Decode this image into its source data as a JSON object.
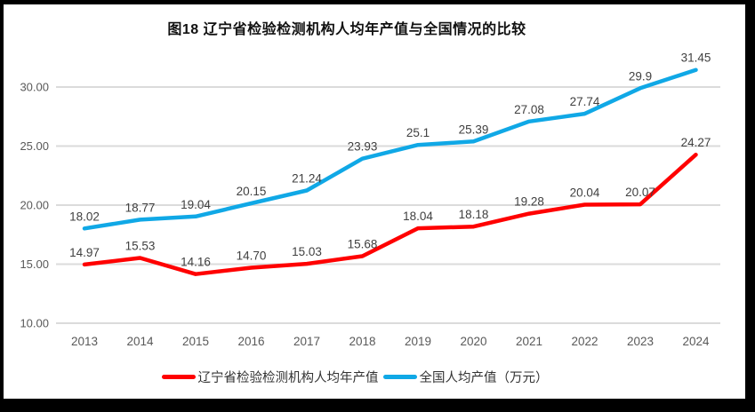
{
  "chart_data": {
    "type": "line",
    "title": "图18 辽宁省检验检测机构人均年产值与全国情况的比较",
    "categories": [
      "2013",
      "2014",
      "2015",
      "2016",
      "2017",
      "2018",
      "2019",
      "2020",
      "2021",
      "2022",
      "2023",
      "2024"
    ],
    "series": [
      {
        "name": "辽宁省检验检测机构人均年产值",
        "color": "#FF0000",
        "values": [
          14.97,
          15.53,
          14.16,
          14.7,
          15.03,
          15.68,
          18.04,
          18.18,
          19.28,
          20.04,
          20.07,
          24.27
        ],
        "labels": [
          "14.97",
          "15.53",
          "14.16",
          "14.70",
          "15.03",
          "15.68",
          "18.04",
          "18.18",
          "19.28",
          "20.04",
          "20.07",
          "24.27"
        ]
      },
      {
        "name": "全国人均产值（万元）",
        "color": "#10A8E6",
        "values": [
          18.02,
          18.77,
          19.04,
          20.15,
          21.24,
          23.93,
          25.1,
          25.39,
          27.08,
          27.74,
          29.9,
          31.45
        ],
        "labels": [
          "18.02",
          "18.77",
          "19.04",
          "20.15",
          "21.24",
          "23.93",
          "25.1",
          "25.39",
          "27.08",
          "27.74",
          "29.9",
          "31.45"
        ]
      }
    ],
    "y_axis": {
      "tick_values": [
        10,
        15,
        20,
        25,
        30
      ],
      "tick_labels": [
        "10.00",
        "15.00",
        "20.00",
        "25.00",
        "30.00"
      ],
      "min": 10,
      "max": 32.5
    },
    "xlabel": "",
    "ylabel": "",
    "grid": true,
    "legend_position": "bottom",
    "colors": {
      "gridline": "#DBDBDB",
      "axis_text": "#595959",
      "data_label_text": "#404040",
      "frame_border": "#000000",
      "background": "#FFFFFF"
    }
  }
}
